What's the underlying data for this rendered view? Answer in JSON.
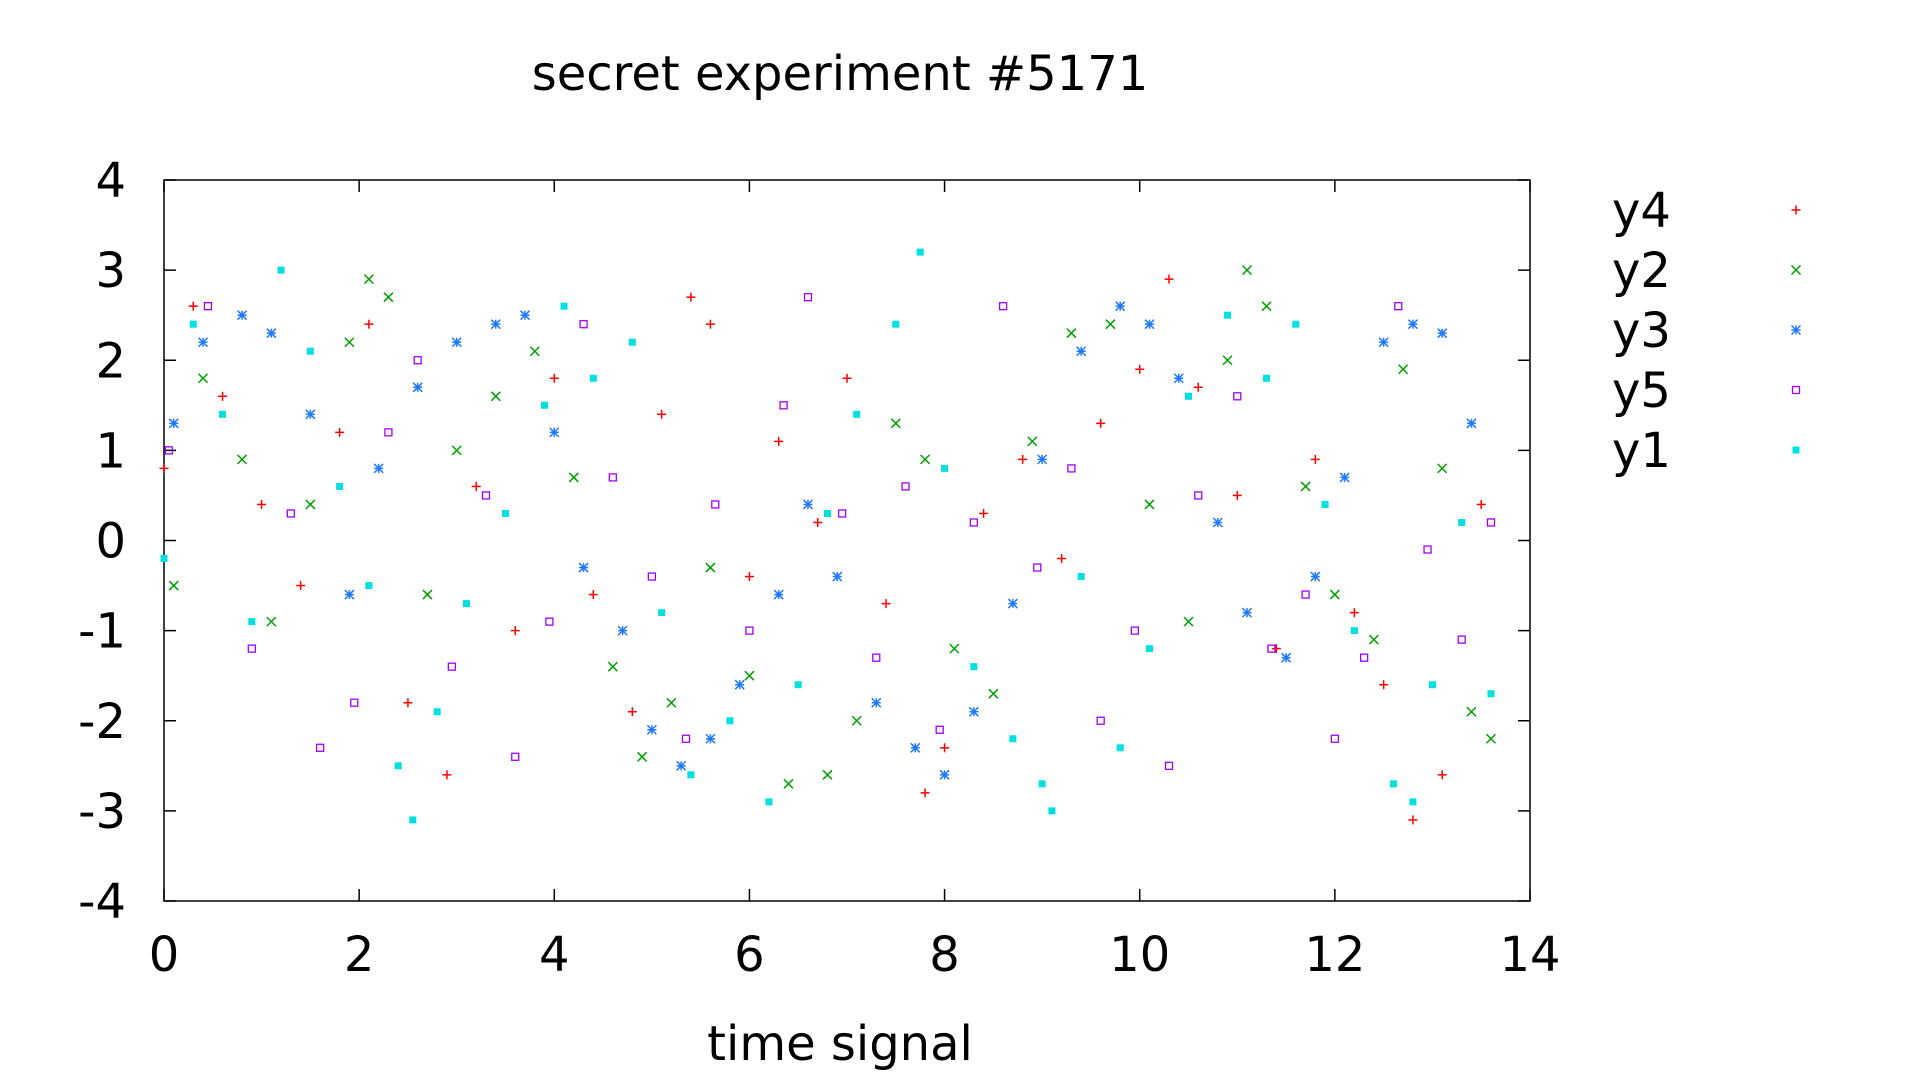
{
  "chart_data": {
    "type": "scatter",
    "title": "secret experiment #5171",
    "xlabel": "time signal",
    "ylabel": "",
    "xlim": [
      0,
      14
    ],
    "ylim": [
      -4,
      4
    ],
    "xticks": [
      "0",
      "2",
      "4",
      "6",
      "8",
      "10",
      "12",
      "14"
    ],
    "yticks": [
      "4",
      "3",
      "2",
      "1",
      "0",
      "-1",
      "-2",
      "-3",
      "-4"
    ],
    "grid": false,
    "legend_position": "right-outside",
    "series": [
      {
        "name": "y4",
        "marker": "plus",
        "color": "#ff0000",
        "x": [
          0.0,
          0.3,
          0.6,
          1.0,
          1.4,
          1.8,
          2.1,
          2.5,
          2.9,
          3.2,
          3.6,
          4.0,
          4.4,
          4.8,
          5.1,
          5.4,
          5.6,
          6.0,
          6.3,
          6.7,
          7.0,
          7.4,
          7.8,
          8.0,
          8.4,
          8.8,
          9.2,
          9.6,
          10.0,
          10.3,
          10.6,
          11.0,
          11.4,
          11.8,
          12.2,
          12.5,
          12.8,
          13.1,
          13.5
        ],
        "y": [
          0.8,
          2.6,
          1.6,
          0.4,
          -0.5,
          1.2,
          2.4,
          -1.8,
          -2.6,
          0.6,
          -1.0,
          1.8,
          -0.6,
          -1.9,
          1.4,
          2.7,
          2.4,
          -0.4,
          1.1,
          0.2,
          1.8,
          -0.7,
          -2.8,
          -2.3,
          0.3,
          0.9,
          -0.2,
          1.3,
          1.9,
          2.9,
          1.7,
          0.5,
          -1.2,
          0.9,
          -0.8,
          -1.6,
          -3.1,
          -2.6,
          0.4
        ]
      },
      {
        "name": "y2",
        "marker": "cross",
        "color": "#00a000",
        "x": [
          0.1,
          0.4,
          0.8,
          1.1,
          1.5,
          1.9,
          2.1,
          2.3,
          2.7,
          3.0,
          3.4,
          3.8,
          4.2,
          4.6,
          4.9,
          5.2,
          5.6,
          6.0,
          6.4,
          6.8,
          7.1,
          7.5,
          7.8,
          8.1,
          8.5,
          8.9,
          9.3,
          9.7,
          10.1,
          10.5,
          10.9,
          11.1,
          11.3,
          11.7,
          12.0,
          12.4,
          12.7,
          13.1,
          13.4,
          13.6
        ],
        "y": [
          -0.5,
          1.8,
          0.9,
          -0.9,
          0.4,
          2.2,
          2.9,
          2.7,
          -0.6,
          1.0,
          1.6,
          2.1,
          0.7,
          -1.4,
          -2.4,
          -1.8,
          -0.3,
          -1.5,
          -2.7,
          -2.6,
          -2.0,
          1.3,
          0.9,
          -1.2,
          -1.7,
          1.1,
          2.3,
          2.4,
          0.4,
          -0.9,
          2.0,
          3.0,
          2.6,
          0.6,
          -0.6,
          -1.1,
          1.9,
          0.8,
          -1.9,
          -2.2
        ]
      },
      {
        "name": "y3",
        "marker": "star",
        "color": "#1e78ff",
        "x": [
          0.1,
          0.4,
          0.8,
          1.1,
          1.5,
          1.9,
          2.2,
          2.6,
          3.0,
          3.4,
          3.7,
          4.0,
          4.3,
          4.7,
          5.0,
          5.3,
          5.6,
          5.9,
          6.3,
          6.6,
          6.9,
          7.3,
          7.7,
          8.0,
          8.3,
          8.7,
          9.0,
          9.4,
          9.8,
          10.1,
          10.4,
          10.8,
          11.1,
          11.5,
          11.8,
          12.1,
          12.5,
          12.8,
          13.1,
          13.4
        ],
        "y": [
          1.3,
          2.2,
          2.5,
          2.3,
          1.4,
          -0.6,
          0.8,
          1.7,
          2.2,
          2.4,
          2.5,
          1.2,
          -0.3,
          -1.0,
          -2.1,
          -2.5,
          -2.2,
          -1.6,
          -0.6,
          0.4,
          -0.4,
          -1.8,
          -2.3,
          -2.6,
          -1.9,
          -0.7,
          0.9,
          2.1,
          2.6,
          2.4,
          1.8,
          0.2,
          -0.8,
          -1.3,
          -0.4,
          0.7,
          2.2,
          2.4,
          2.3,
          1.3
        ]
      },
      {
        "name": "y5",
        "marker": "square-open",
        "color": "#a000ff",
        "x": [
          0.05,
          0.45,
          0.9,
          1.3,
          1.6,
          1.95,
          2.3,
          2.6,
          2.95,
          3.3,
          3.6,
          3.95,
          4.3,
          4.6,
          5.0,
          5.35,
          5.65,
          6.0,
          6.35,
          6.6,
          6.95,
          7.3,
          7.6,
          7.95,
          8.3,
          8.6,
          8.95,
          9.3,
          9.6,
          9.95,
          10.3,
          10.6,
          11.0,
          11.35,
          11.7,
          12.0,
          12.3,
          12.65,
          12.95,
          13.3,
          13.6
        ],
        "y": [
          1.0,
          2.6,
          -1.2,
          0.3,
          -2.3,
          -1.8,
          1.2,
          2.0,
          -1.4,
          0.5,
          -2.4,
          -0.9,
          2.4,
          0.7,
          -0.4,
          -2.2,
          0.4,
          -1.0,
          1.5,
          2.7,
          0.3,
          -1.3,
          0.6,
          -2.1,
          0.2,
          2.6,
          -0.3,
          0.8,
          -2.0,
          -1.0,
          -2.5,
          0.5,
          1.6,
          -1.2,
          -0.6,
          -2.2,
          -1.3,
          2.6,
          -0.1,
          -1.1,
          0.2
        ]
      },
      {
        "name": "y1",
        "marker": "square-filled",
        "color": "#00e0e0",
        "x": [
          0.0,
          0.3,
          0.6,
          0.9,
          1.2,
          1.5,
          1.8,
          2.1,
          2.4,
          2.55,
          2.8,
          3.1,
          3.5,
          3.9,
          4.1,
          4.4,
          4.8,
          5.1,
          5.4,
          5.8,
          6.2,
          6.5,
          6.8,
          7.1,
          7.5,
          7.75,
          8.0,
          8.3,
          8.7,
          9.0,
          9.1,
          9.4,
          9.8,
          10.1,
          10.5,
          10.9,
          11.3,
          11.6,
          11.9,
          12.2,
          12.6,
          12.8,
          13.0,
          13.3,
          13.6
        ],
        "y": [
          -0.2,
          2.4,
          1.4,
          -0.9,
          3.0,
          2.1,
          0.6,
          -0.5,
          -2.5,
          -3.1,
          -1.9,
          -0.7,
          0.3,
          1.5,
          2.6,
          1.8,
          2.2,
          -0.8,
          -2.6,
          -2.0,
          -2.9,
          -1.6,
          0.3,
          1.4,
          2.4,
          3.2,
          0.8,
          -1.4,
          -2.2,
          -2.7,
          -3.0,
          -0.4,
          -2.3,
          -1.2,
          1.6,
          2.5,
          1.8,
          2.4,
          0.4,
          -1.0,
          -2.7,
          -2.9,
          -1.6,
          0.2,
          -1.7
        ]
      }
    ]
  }
}
